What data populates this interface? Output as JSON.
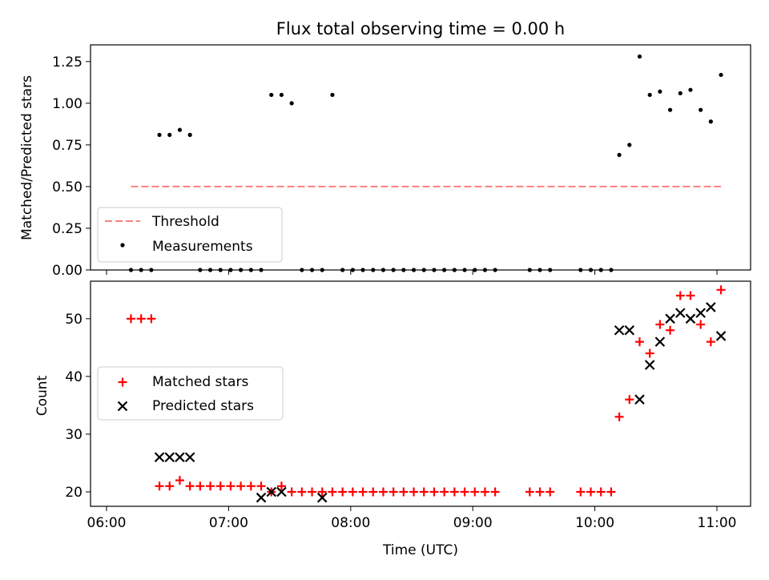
{
  "chart_data": [
    {
      "type": "scatter",
      "title": "Flux total observing time = 0.00 h",
      "xlabel": "",
      "ylabel": "Matched/Predicted stars",
      "xlim": [
        "06:00",
        "11:00"
      ],
      "ylim": [
        0,
        1.35
      ],
      "yticks": [
        "0.00",
        "0.25",
        "0.50",
        "0.75",
        "1.00",
        "1.25"
      ],
      "ytick_values": [
        0,
        0.25,
        0.5,
        0.75,
        1.0,
        1.25
      ],
      "legend": {
        "position": "lower-left",
        "entries": [
          "Threshold",
          "Measurements"
        ]
      },
      "colors": {
        "threshold": "#ff7f7f",
        "measurements": "#000000"
      },
      "threshold": {
        "name": "Threshold",
        "value": 0.5,
        "x_start": "06:12",
        "x_end": "11:02"
      },
      "series": [
        {
          "name": "Measurements",
          "x": [
            "06:12",
            "06:17",
            "06:22",
            "06:26",
            "06:31",
            "06:36",
            "06:41",
            "06:46",
            "06:51",
            "06:56",
            "07:01",
            "07:06",
            "07:11",
            "07:16",
            "07:21",
            "07:26",
            "07:31",
            "07:36",
            "07:41",
            "07:46",
            "07:51",
            "07:56",
            "08:01",
            "08:06",
            "08:11",
            "08:16",
            "08:21",
            "08:26",
            "08:31",
            "08:36",
            "08:41",
            "08:46",
            "08:51",
            "08:56",
            "09:01",
            "09:06",
            "09:11",
            "09:28",
            "09:33",
            "09:38",
            "09:53",
            "09:58",
            "10:03",
            "10:08",
            "10:12",
            "10:17",
            "10:22",
            "10:27",
            "10:32",
            "10:37",
            "10:42",
            "10:47",
            "10:52",
            "10:57",
            "11:02"
          ],
          "y": [
            0,
            0,
            0,
            0.81,
            0.81,
            0.84,
            0.81,
            0,
            0,
            0,
            0,
            0,
            0,
            0,
            1.05,
            1.05,
            1.0,
            0,
            0,
            0,
            1.05,
            0,
            0,
            0,
            0,
            0,
            0,
            0,
            0,
            0,
            0,
            0,
            0,
            0,
            0,
            0,
            0,
            0,
            0,
            0,
            0,
            0,
            0,
            0,
            0.69,
            0.75,
            1.28,
            1.05,
            1.07,
            0.96,
            1.06,
            1.08,
            0.96,
            0.89,
            1.17
          ]
        }
      ]
    },
    {
      "type": "scatter",
      "title": "",
      "xlabel": "Time (UTC)",
      "ylabel": "Count",
      "xlim": [
        "06:00",
        "11:00"
      ],
      "ylim": [
        17.5,
        56.5
      ],
      "xticks": [
        "06:00",
        "07:00",
        "08:00",
        "09:00",
        "10:00",
        "11:00"
      ],
      "yticks": [
        "20",
        "30",
        "40",
        "50"
      ],
      "ytick_values": [
        20,
        30,
        40,
        50
      ],
      "legend": {
        "position": "center-left",
        "entries": [
          "Matched stars",
          "Predicted stars"
        ]
      },
      "colors": {
        "matched": "#ff0000",
        "predicted": "#000000"
      },
      "series": [
        {
          "name": "Matched stars",
          "marker": "plus",
          "x": [
            "06:12",
            "06:17",
            "06:22",
            "06:26",
            "06:31",
            "06:36",
            "06:41",
            "06:46",
            "06:51",
            "06:56",
            "07:01",
            "07:06",
            "07:11",
            "07:16",
            "07:21",
            "07:26",
            "07:31",
            "07:36",
            "07:41",
            "07:46",
            "07:51",
            "07:56",
            "08:01",
            "08:06",
            "08:11",
            "08:16",
            "08:21",
            "08:26",
            "08:31",
            "08:36",
            "08:41",
            "08:46",
            "08:51",
            "08:56",
            "09:01",
            "09:06",
            "09:11",
            "09:28",
            "09:33",
            "09:38",
            "09:53",
            "09:58",
            "10:03",
            "10:08",
            "10:12",
            "10:17",
            "10:22",
            "10:27",
            "10:32",
            "10:37",
            "10:42",
            "10:47",
            "10:52",
            "10:57",
            "11:02"
          ],
          "y": [
            50,
            50,
            50,
            21,
            21,
            22,
            21,
            21,
            21,
            21,
            21,
            21,
            21,
            21,
            20,
            21,
            20,
            20,
            20,
            20,
            20,
            20,
            20,
            20,
            20,
            20,
            20,
            20,
            20,
            20,
            20,
            20,
            20,
            20,
            20,
            20,
            20,
            20,
            20,
            20,
            20,
            20,
            20,
            20,
            33,
            36,
            46,
            44,
            49,
            48,
            54,
            54,
            49,
            46,
            55
          ]
        },
        {
          "name": "Predicted stars",
          "marker": "x",
          "x": [
            "06:26",
            "06:31",
            "06:36",
            "06:41",
            "07:16",
            "07:21",
            "07:26",
            "07:46",
            "10:12",
            "10:17",
            "10:22",
            "10:27",
            "10:32",
            "10:37",
            "10:42",
            "10:47",
            "10:52",
            "10:57",
            "11:02"
          ],
          "y": [
            26,
            26,
            26,
            26,
            19,
            20,
            20,
            19,
            48,
            48,
            36,
            42,
            46,
            50,
            51,
            50,
            51,
            52,
            47
          ]
        }
      ]
    }
  ]
}
